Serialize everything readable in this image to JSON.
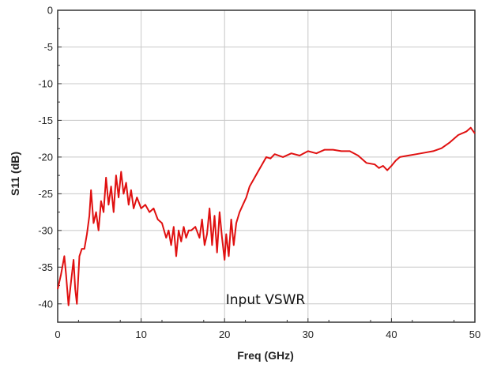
{
  "chart_data": {
    "type": "line",
    "title": "",
    "xlabel": "Freq  (GHz)",
    "ylabel": "S11 (dB)",
    "xlim": [
      0,
      50
    ],
    "ylim": [
      -42.5,
      0
    ],
    "xticks": [
      0,
      10,
      20,
      30,
      40,
      50
    ],
    "yticks": [
      0,
      -5,
      -10,
      -15,
      -20,
      -25,
      -30,
      -35,
      -40
    ],
    "grid": true,
    "annotation": "Input VSWR",
    "series": [
      {
        "color": "#e01010",
        "x": [
          0,
          0.4,
          0.8,
          1.0,
          1.3,
          1.6,
          1.9,
          2.1,
          2.3,
          2.6,
          2.9,
          3.2,
          3.5,
          3.8,
          4.0,
          4.3,
          4.6,
          4.9,
          5.2,
          5.5,
          5.8,
          6.1,
          6.4,
          6.7,
          7.0,
          7.3,
          7.6,
          7.9,
          8.2,
          8.5,
          8.8,
          9.1,
          9.5,
          10.0,
          10.5,
          11.0,
          11.5,
          12.0,
          12.5,
          13.0,
          13.3,
          13.6,
          13.9,
          14.2,
          14.5,
          14.8,
          15.1,
          15.4,
          15.7,
          16.0,
          16.5,
          17.0,
          17.3,
          17.6,
          17.9,
          18.2,
          18.5,
          18.8,
          19.1,
          19.4,
          19.7,
          20.0,
          20.2,
          20.5,
          20.8,
          21.1,
          21.4,
          21.8,
          22.2,
          22.6,
          23.0,
          23.5,
          24.0,
          24.5,
          25.0,
          25.5,
          26.0,
          27.0,
          28.0,
          29.0,
          30.0,
          31.0,
          32.0,
          33.0,
          34.0,
          35.0,
          36.0,
          37.0,
          38.0,
          38.5,
          39.0,
          39.5,
          40.0,
          40.5,
          41.0,
          42.0,
          43.0,
          44.0,
          45.0,
          46.0,
          47.0,
          48.0,
          49.0,
          49.5,
          50.0
        ],
        "values": [
          -38,
          -36,
          -33.5,
          -36,
          -40.2,
          -37,
          -34,
          -38,
          -40,
          -33.5,
          -32.5,
          -32.5,
          -30.5,
          -28,
          -24.5,
          -29,
          -27.5,
          -30,
          -26,
          -27.5,
          -22.8,
          -26.5,
          -24,
          -27.5,
          -22.5,
          -25.5,
          -22,
          -25,
          -23.5,
          -26.5,
          -24.5,
          -27,
          -25.5,
          -27,
          -26.5,
          -27.5,
          -27,
          -28.5,
          -29,
          -31,
          -30,
          -32,
          -29.5,
          -33.5,
          -30,
          -31.5,
          -29.5,
          -31,
          -30,
          -30,
          -29.5,
          -31,
          -28.5,
          -32,
          -30.5,
          -27,
          -32,
          -28,
          -33,
          -27.5,
          -31,
          -34,
          -30.5,
          -33.5,
          -28.5,
          -32,
          -29,
          -27.5,
          -26.5,
          -25.5,
          -24,
          -23,
          -22,
          -21,
          -20,
          -20.2,
          -19.6,
          -20,
          -19.5,
          -19.8,
          -19.2,
          -19.5,
          -19,
          -19,
          -19.2,
          -19.2,
          -19.8,
          -20.8,
          -21,
          -21.5,
          -21.2,
          -21.8,
          -21.2,
          -20.5,
          -20,
          -19.8,
          -19.6,
          -19.4,
          -19.2,
          -18.8,
          -18,
          -17,
          -16.5,
          -16,
          -16.8
        ]
      }
    ]
  }
}
